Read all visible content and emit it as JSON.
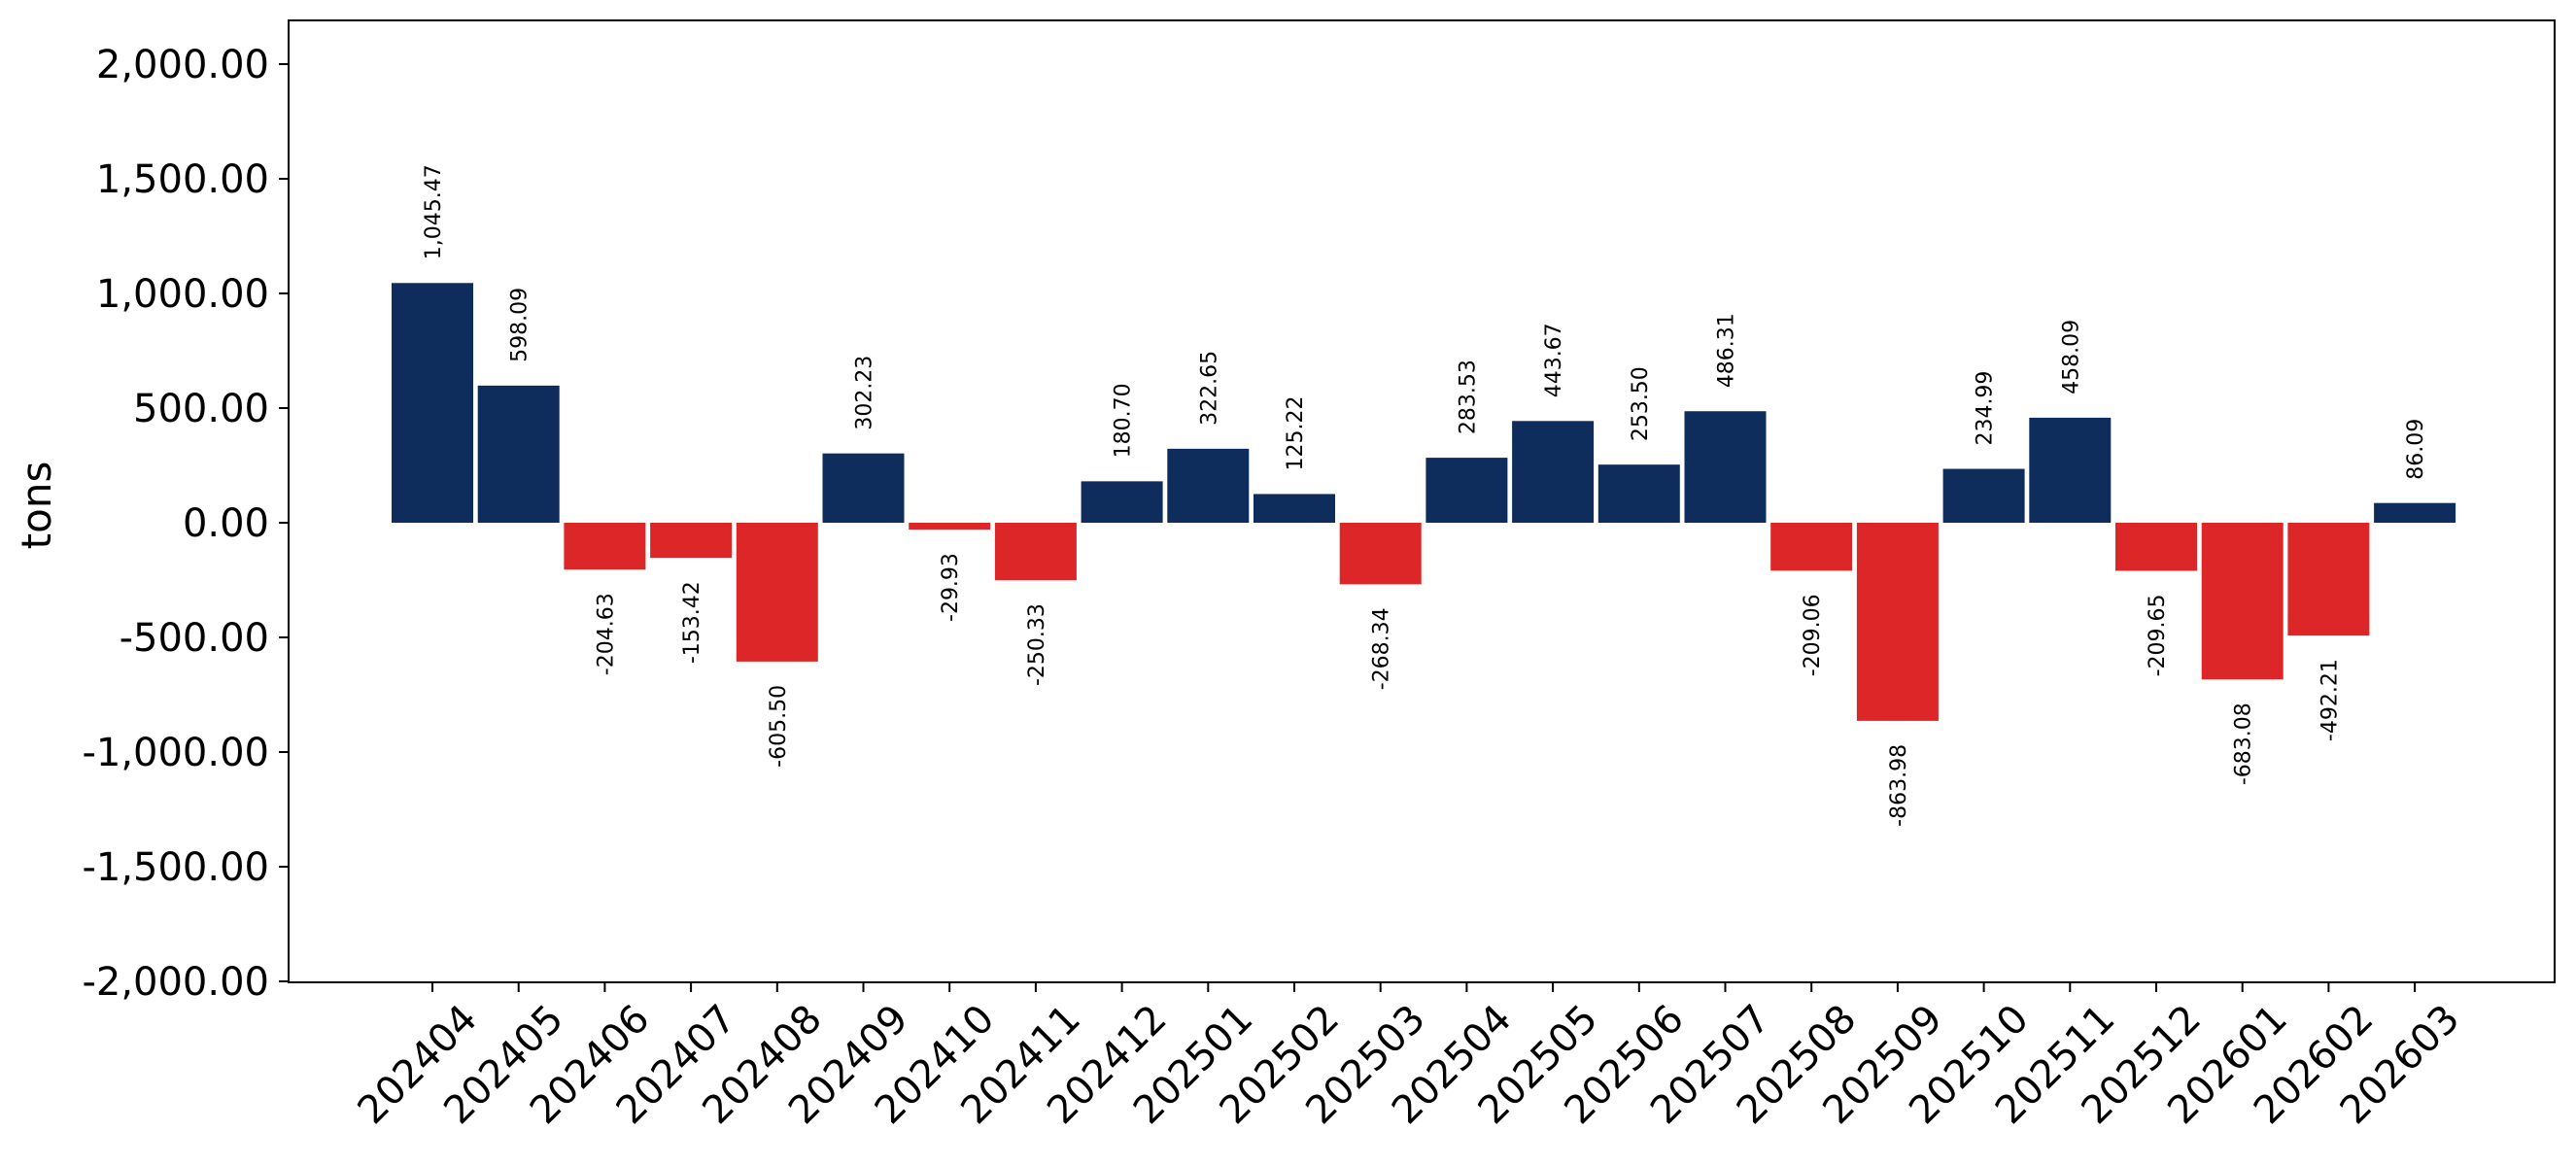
{
  "chart_data": {
    "type": "bar",
    "title": "",
    "xlabel": "",
    "ylabel": "tons",
    "ylim": [
      -2000,
      2000
    ],
    "yticks": [
      2000,
      1500,
      1000,
      500,
      0,
      -500,
      -1000,
      -1500,
      -2000
    ],
    "ytick_labels": [
      "2,000.00",
      "1,500.00",
      "1,000.00",
      "500.00",
      "0.00",
      "-500.00",
      "-1,000.00",
      "-1,500.00",
      "-2,000.00"
    ],
    "grid": false,
    "legend": null,
    "colors": {
      "positive": "#0e2d5c",
      "negative": "#dd2627"
    },
    "categories": [
      "202404",
      "202405",
      "202406",
      "202407",
      "202408",
      "202409",
      "202410",
      "202411",
      "202412",
      "202501",
      "202502",
      "202503",
      "202504",
      "202505",
      "202506",
      "202507",
      "202508",
      "202509",
      "202510",
      "202511",
      "202512",
      "202601",
      "202602",
      "202603"
    ],
    "values": [
      1045.47,
      598.09,
      -204.63,
      -153.42,
      -605.5,
      302.23,
      -29.93,
      -250.33,
      180.7,
      322.65,
      125.22,
      -268.34,
      283.53,
      443.67,
      253.5,
      486.31,
      -209.06,
      -863.98,
      234.99,
      458.09,
      -209.65,
      -683.08,
      -492.21,
      86.09
    ],
    "value_labels": [
      "1,045.47",
      "598.09",
      "-204.63",
      "-153.42",
      "-605.50",
      "302.23",
      "-29.93",
      "-250.33",
      "180.70",
      "322.65",
      "125.22",
      "-268.34",
      "283.53",
      "443.67",
      "253.50",
      "486.31",
      "-209.06",
      "-863.98",
      "234.99",
      "458.09",
      "-209.65",
      "-683.08",
      "-492.21",
      "86.09"
    ]
  }
}
